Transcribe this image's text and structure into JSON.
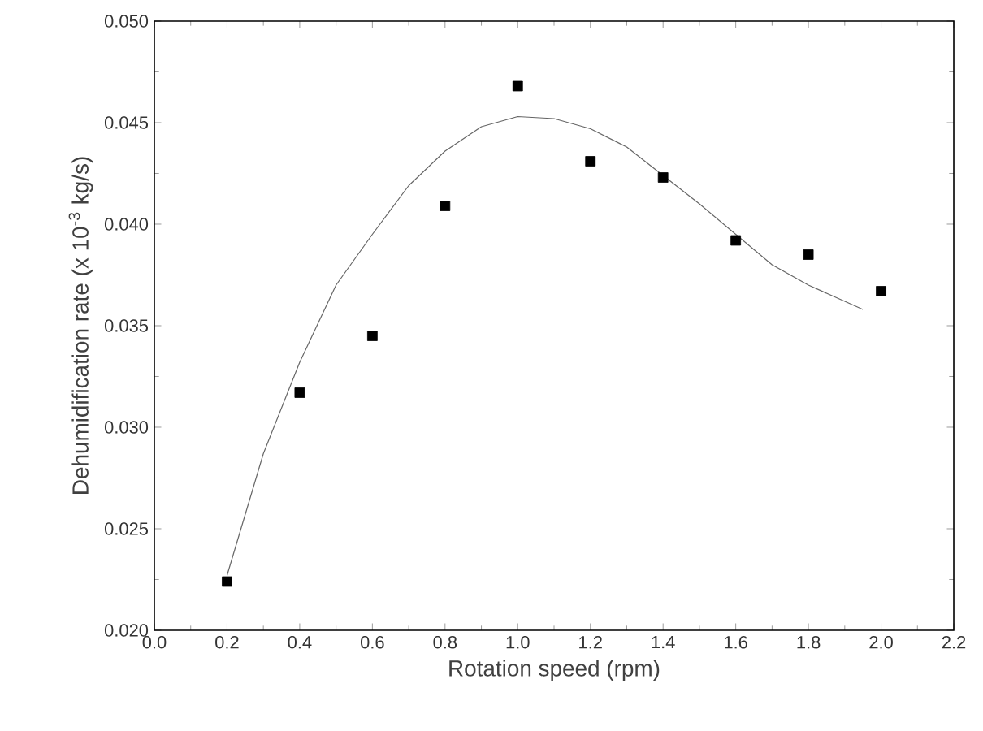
{
  "chart_data": {
    "type": "scatter",
    "xlabel": "Rotation speed (rpm)",
    "ylabel": "Dehumidification rate (x 10$^{-3}$ kg/s)",
    "xlim": [
      0.0,
      2.2
    ],
    "ylim": [
      0.02,
      0.05
    ],
    "xticks": [
      {
        "value": 0.0,
        "label": "0.0"
      },
      {
        "value": 0.2,
        "label": "0.2"
      },
      {
        "value": 0.4,
        "label": "0.4"
      },
      {
        "value": 0.6,
        "label": "0.6"
      },
      {
        "value": 0.8,
        "label": "0.8"
      },
      {
        "value": 1.0,
        "label": "1.0"
      },
      {
        "value": 1.2,
        "label": "1.2"
      },
      {
        "value": 1.4,
        "label": "1.4"
      },
      {
        "value": 1.6,
        "label": "1.6"
      },
      {
        "value": 1.8,
        "label": "1.8"
      },
      {
        "value": 2.0,
        "label": "2.0"
      },
      {
        "value": 2.2,
        "label": "2.2"
      }
    ],
    "yticks": [
      {
        "value": 0.02,
        "label": "0.020"
      },
      {
        "value": 0.025,
        "label": "0.025"
      },
      {
        "value": 0.03,
        "label": "0.030"
      },
      {
        "value": 0.035,
        "label": "0.035"
      },
      {
        "value": 0.04,
        "label": "0.040"
      },
      {
        "value": 0.045,
        "label": "0.045"
      },
      {
        "value": 0.05,
        "label": "0.050"
      }
    ],
    "series": [
      {
        "marker": "square",
        "color": "#000000",
        "x": [
          0.2,
          0.4,
          0.6,
          0.8,
          1.0,
          1.2,
          1.4,
          1.6,
          1.8,
          2.0
        ],
        "values": [
          0.0224,
          0.0317,
          0.0345,
          0.0409,
          0.0468,
          0.0431,
          0.0423,
          0.0392,
          0.0385,
          0.0367
        ]
      },
      {
        "type": "line",
        "marker": "none",
        "line_style": "solid",
        "color": "#666666",
        "x": [
          0.2,
          0.3,
          0.4,
          0.5,
          0.6,
          0.7,
          0.8,
          0.9,
          1.0,
          1.1,
          1.2,
          1.3,
          1.4,
          1.5,
          1.6,
          1.7,
          1.8,
          1.9,
          1.95
        ],
        "values": [
          0.0227,
          0.0287,
          0.0332,
          0.037,
          0.0395,
          0.0419,
          0.0436,
          0.0448,
          0.0453,
          0.0452,
          0.0447,
          0.0438,
          0.0424,
          0.041,
          0.0395,
          0.038,
          0.037,
          0.0362,
          0.0358
        ]
      }
    ]
  }
}
